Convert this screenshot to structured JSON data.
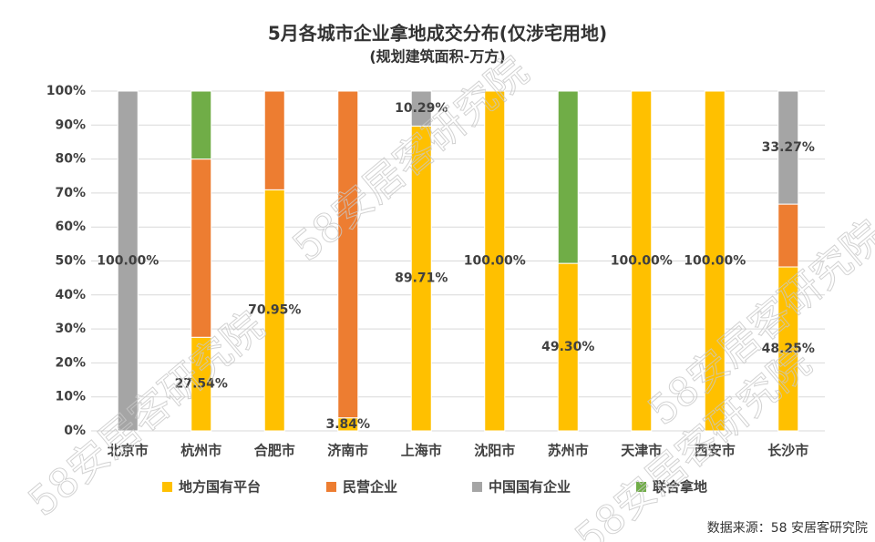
{
  "chart_data": {
    "type": "stacked_bar",
    "title": "5月各城市企业拿地成交分布(仅涉宅用地)",
    "subtitle": "(规划建筑面积-万方)",
    "source": "数据来源：58 安居客研究院",
    "watermark": "58安居客研究院",
    "categories": [
      "北京市",
      "杭州市",
      "合肥市",
      "济南市",
      "上海市",
      "沈阳市",
      "苏州市",
      "天津市",
      "西安市",
      "长沙市"
    ],
    "series": [
      {
        "name": "地方国有平台",
        "color": "#FFC000",
        "values": [
          0,
          27.54,
          70.95,
          3.84,
          89.71,
          100,
          49.3,
          100,
          100,
          48.25
        ],
        "value_labels": [
          null,
          "27.54%",
          "70.95%",
          "3.84%",
          "89.71%",
          "100.00%",
          "49.30%",
          "100.00%",
          "100.00%",
          "48.25%"
        ]
      },
      {
        "name": "民营企业",
        "color": "#ED7D31",
        "values": [
          0,
          52.46,
          29.05,
          96.16,
          0,
          0,
          0,
          0,
          0,
          18.48
        ]
      },
      {
        "name": "中国国有企业",
        "color": "#A5A5A5",
        "values": [
          100,
          0,
          0,
          0,
          10.29,
          0,
          0,
          0,
          0,
          33.27
        ],
        "value_labels": [
          "100.00%",
          null,
          null,
          null,
          "10.29%",
          null,
          null,
          null,
          null,
          "33.27%"
        ]
      },
      {
        "name": "联合拿地",
        "color": "#70AD47",
        "values": [
          0,
          20,
          0,
          0,
          0,
          0,
          50.7,
          0,
          0,
          0
        ]
      }
    ],
    "ylim": [
      0,
      100
    ],
    "yticks": [
      {
        "value": 0,
        "label": "0%"
      },
      {
        "value": 10,
        "label": "10%"
      },
      {
        "value": 20,
        "label": "20%"
      },
      {
        "value": 30,
        "label": "30%"
      },
      {
        "value": 40,
        "label": "40%"
      },
      {
        "value": 50,
        "label": "50%"
      },
      {
        "value": 60,
        "label": "60%"
      },
      {
        "value": 70,
        "label": "70%"
      },
      {
        "value": 80,
        "label": "80%"
      },
      {
        "value": 90,
        "label": "90%"
      },
      {
        "value": 100,
        "label": "100%"
      }
    ],
    "grid": true,
    "legend": "bottom"
  }
}
